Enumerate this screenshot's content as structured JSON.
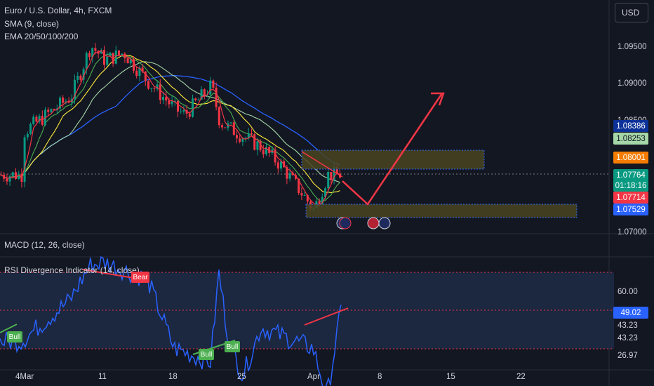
{
  "header": {
    "symbol_line": "Euro / U.S. Dollar, 4h, FXCM",
    "sma_line": "SMA (9, close)",
    "ema_line": "EMA 20/50/100/200"
  },
  "currency_button": "USD",
  "price_axis_labels": [
    "1.09500",
    "1.09000",
    "1.08500",
    "1.07000"
  ],
  "price_badges": [
    {
      "text": "1.08386",
      "bg": "#0c3299",
      "fg": "#ffffff"
    },
    {
      "text": "1.08253",
      "bg": "#a5d6a7",
      "fg": "#131722"
    },
    {
      "text": "1.08001",
      "bg": "#f57c00",
      "fg": "#ffffff"
    },
    {
      "text": "1.07764",
      "bg": "#089981",
      "fg": "#ffffff"
    },
    {
      "text": "01:18:16",
      "bg": "#089981",
      "fg": "#ffffff"
    },
    {
      "text": "1.07714",
      "bg": "#f23645",
      "fg": "#ffffff"
    },
    {
      "text": "1.07529",
      "bg": "#2962ff",
      "fg": "#ffffff"
    }
  ],
  "macd_label": "MACD (12, 26, close)",
  "rsi_label": "RSI Divergence Indicator (14, close)",
  "rsi_axis_labels": [
    "60.00",
    "49.02",
    "43.23",
    "43.23",
    "26.97"
  ],
  "rsi_current": {
    "text": "49.02",
    "bg": "#2962ff"
  },
  "date_labels": [
    "4Mar",
    "11",
    "18",
    "25",
    "Apr",
    "8",
    "15",
    "22"
  ],
  "signal_labels": {
    "bear": "Bear",
    "bull": "Bull"
  },
  "colors": {
    "background": "#131722",
    "grid_dotted": "#f23645",
    "zone_fill": "#4a4420",
    "zone_border": "#2962ff",
    "projection_line": "#f23645",
    "rsi_line": "#2962ff",
    "rsi_band": "#1e2a44",
    "sma": "#f23645",
    "ema20": "#4caf50",
    "ema50": "#ffeb3b",
    "ema100": "#a5d6a7",
    "ema200": "#2962ff"
  },
  "chart_data": {
    "type": "candlestick",
    "instrument": "Euro / U.S. Dollar",
    "timeframe": "4h",
    "y_ticks": [
      1.095,
      1.09,
      1.085,
      1.07
    ],
    "ylim": [
      1.0695,
      1.1
    ],
    "x_ticks": [
      "4Mar",
      "11",
      "18",
      "25",
      "Apr",
      "8",
      "15",
      "22"
    ],
    "price_path": [
      [
        "4Mar",
        1.0835
      ],
      [
        "7Mar",
        1.0885
      ],
      [
        "8Mar",
        1.0955
      ],
      [
        "11",
        1.0935
      ],
      [
        "13Mar",
        1.0945
      ],
      [
        "15Mar",
        1.0905
      ],
      [
        "18",
        1.0868
      ],
      [
        "19Mar",
        1.086
      ],
      [
        "20Mar",
        1.09
      ],
      [
        "21Mar",
        1.085
      ],
      [
        "25",
        1.083
      ],
      [
        "27Mar",
        1.0815
      ],
      [
        "28Mar",
        1.079
      ],
      [
        "Apr",
        1.073
      ],
      [
        "2Apr",
        1.0778
      ]
    ],
    "zones": [
      {
        "name": "resistance",
        "from": 1.0778,
        "to": 1.0803
      },
      {
        "name": "support",
        "from": 1.0722,
        "to": 1.0738
      }
    ],
    "projection": [
      [
        "2Apr",
        1.0778
      ],
      [
        "5Apr",
        1.074
      ],
      [
        "14Apr",
        1.0893
      ]
    ],
    "price_labels": [
      1.08386,
      1.08253,
      1.08001,
      1.07764,
      1.07714,
      1.07529
    ],
    "rsi": {
      "ylim": [
        20,
        70
      ],
      "levels": [
        60.0,
        49.02,
        43.23,
        26.97
      ],
      "series": [
        [
          "4Mar",
          40
        ],
        [
          "7Mar",
          52
        ],
        [
          "8Mar",
          62
        ],
        [
          "11",
          63
        ],
        [
          "15Mar",
          58
        ],
        [
          "18",
          38
        ],
        [
          "20Mar",
          34
        ],
        [
          "21Mar",
          60
        ],
        [
          "22Mar",
          41
        ],
        [
          "25",
          30
        ],
        [
          "27Mar",
          44
        ],
        [
          "Apr",
          38
        ],
        [
          "2Apr",
          24
        ],
        [
          "3Apr",
          49
        ]
      ]
    }
  }
}
